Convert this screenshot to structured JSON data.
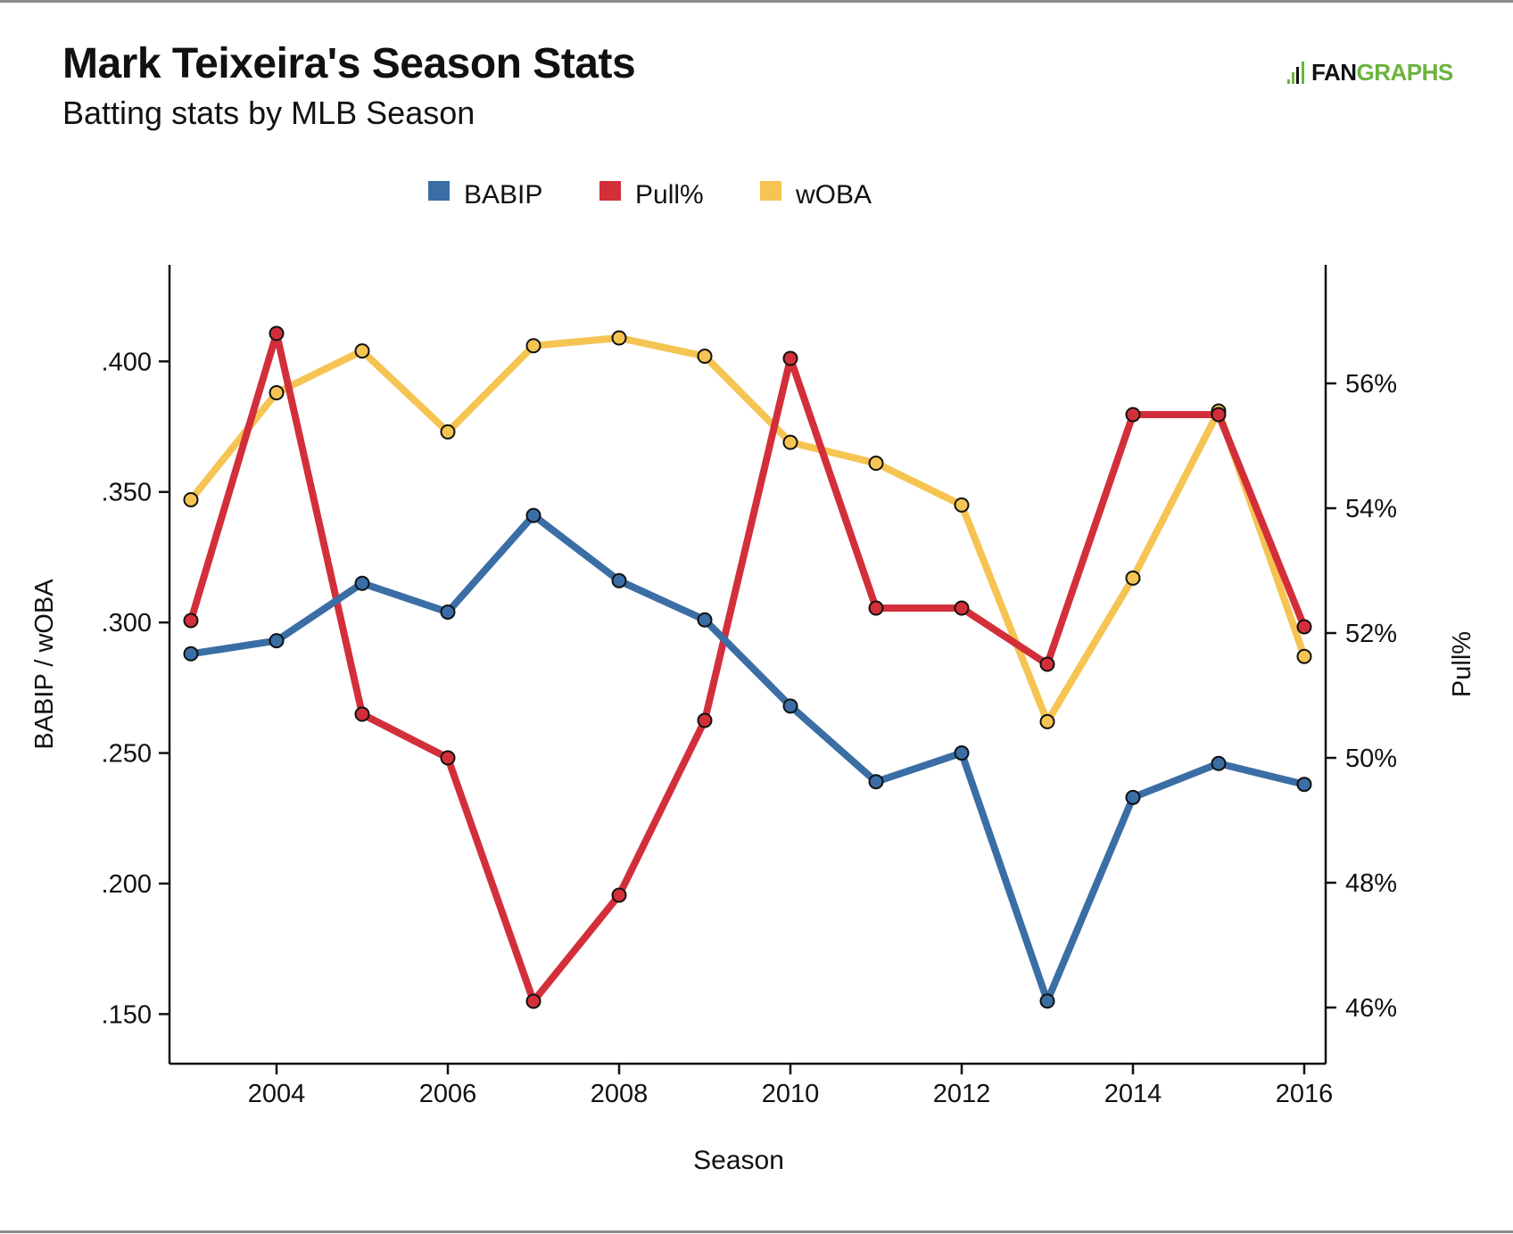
{
  "header": {
    "title": "Mark Teixeira's Season Stats",
    "subtitle": "Batting stats by MLB Season"
  },
  "logo": {
    "text_primary": "FAN",
    "text_secondary": "GRAPHS",
    "icon": "fangraphs-logo-icon",
    "color_primary": "#111111",
    "color_secondary": "#6cb33e"
  },
  "chart_data": {
    "type": "line",
    "title": "Mark Teixeira's Season Stats",
    "subtitle": "Batting stats by MLB Season",
    "xlabel": "Season",
    "ylabel": "BABIP / wOBA",
    "y2label": "Pull%",
    "x": [
      2003,
      2004,
      2005,
      2006,
      2007,
      2008,
      2009,
      2010,
      2011,
      2012,
      2013,
      2014,
      2015,
      2016
    ],
    "xlim": [
      2002.75,
      2016.25
    ],
    "xticks": [
      2004,
      2006,
      2008,
      2010,
      2012,
      2014,
      2016
    ],
    "xtick_labels": [
      "2004",
      "2006",
      "2008",
      "2010",
      "2012",
      "2014",
      "2016"
    ],
    "ylim": [
      0.131,
      0.437
    ],
    "yticks": [
      0.15,
      0.2,
      0.25,
      0.3,
      0.35,
      0.4
    ],
    "ytick_labels": [
      ".150",
      ".200",
      ".250",
      ".300",
      ".350",
      ".400"
    ],
    "y2lim": [
      45.1,
      57.9
    ],
    "y2ticks": [
      46,
      48,
      50,
      52,
      54,
      56
    ],
    "y2tick_labels": [
      "46%",
      "48%",
      "50%",
      "52%",
      "54%",
      "56%"
    ],
    "grid": false,
    "legend_position": "top-center",
    "series": [
      {
        "name": "BABIP",
        "axis": "left",
        "color": "#3a6ea5",
        "values": [
          0.288,
          0.293,
          0.315,
          0.304,
          0.341,
          0.316,
          0.301,
          0.268,
          0.239,
          0.25,
          0.155,
          0.233,
          0.246,
          0.238
        ]
      },
      {
        "name": "Pull%",
        "axis": "right",
        "color": "#d32f3a",
        "values": [
          52.2,
          56.8,
          50.7,
          50.0,
          46.1,
          47.8,
          50.6,
          56.4,
          52.4,
          52.4,
          51.5,
          55.5,
          55.5,
          52.1
        ]
      },
      {
        "name": "wOBA",
        "axis": "left",
        "color": "#f5c452",
        "values": [
          0.347,
          0.388,
          0.404,
          0.373,
          0.406,
          0.409,
          0.402,
          0.369,
          0.361,
          0.345,
          0.262,
          0.317,
          0.381,
          0.287
        ]
      }
    ]
  }
}
